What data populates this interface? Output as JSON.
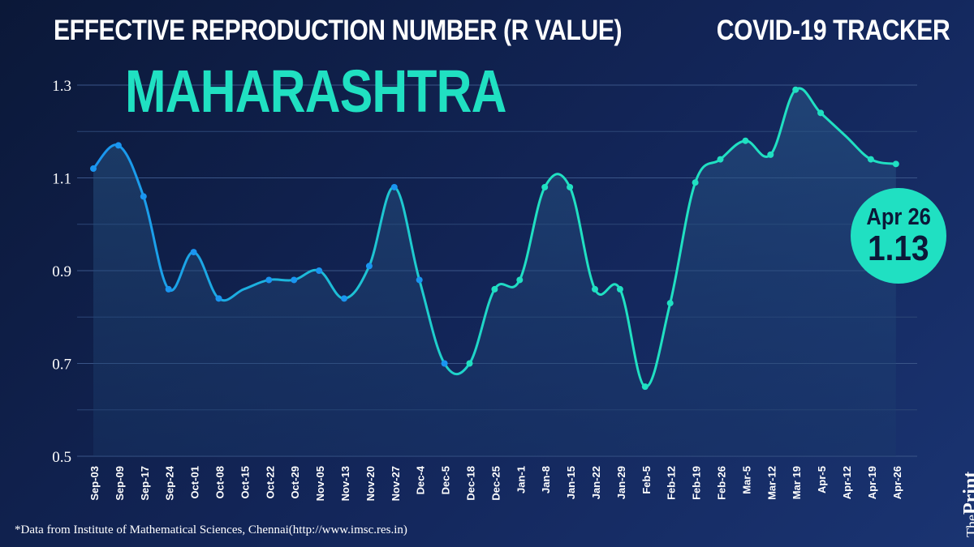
{
  "header": {
    "title": "EFFECTIVE REPRODUCTION NUMBER (R VALUE)",
    "tracker": "COVID-19 TRACKER",
    "state": "MAHARASHTRA"
  },
  "badge": {
    "date": "Apr 26",
    "value": "1.13"
  },
  "footnote": "*Data from Institute of Mathematical Sciences, Chennai(http://www.imsc.res.in)",
  "brand": {
    "prefix": "The",
    "name": "Print"
  },
  "colors": {
    "line_start": "#1a95f0",
    "line_end": "#20e0c2",
    "accent": "#20e0c2",
    "background": "#0b1838"
  },
  "chart_data": {
    "type": "line",
    "title": "EFFECTIVE REPRODUCTION NUMBER (R VALUE)",
    "xlabel": "",
    "ylabel": "",
    "categories": [
      "Sep-03",
      "Sep-09",
      "Sep-17",
      "Sep-24",
      "Oct-01",
      "Oct-08",
      "Oct-15",
      "Oct-22",
      "Oct-29",
      "Nov-05",
      "Nov-13",
      "Nov-20",
      "Nov-27",
      "Dec-4",
      "Dec-5",
      "Dec-18",
      "Dec-25",
      "Jan-1",
      "Jan-8",
      "Jan-15",
      "Jan-22",
      "Jan-29",
      "Feb-5",
      "Feb-12",
      "Feb-19",
      "Feb-26",
      "Mar-5",
      "Mar-12",
      "Mar 19",
      "Apr-5",
      "Apr-12",
      "Apr-19",
      "Apr-26"
    ],
    "values": [
      1.12,
      1.17,
      1.06,
      0.86,
      0.94,
      0.84,
      null,
      0.88,
      0.88,
      0.9,
      0.84,
      0.91,
      1.08,
      0.88,
      0.7,
      0.7,
      0.86,
      0.88,
      1.08,
      1.08,
      0.86,
      0.86,
      0.65,
      0.83,
      1.09,
      1.14,
      1.18,
      1.15,
      1.29,
      1.24,
      null,
      1.14,
      1.13
    ],
    "ylim": [
      0.5,
      1.3
    ],
    "yticks": [
      "0.5",
      "0.7",
      "0.9",
      "1.1",
      "1.3"
    ],
    "grid": true,
    "legend": "none"
  }
}
